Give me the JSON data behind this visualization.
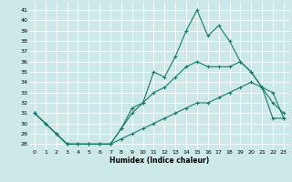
{
  "xlabel": "Humidex (Indice chaleur)",
  "bg_color": "#cce8e8",
  "grid_color": "#ffffff",
  "line_color": "#1a7a6a",
  "xlim": [
    -0.5,
    23.5
  ],
  "ylim": [
    27.5,
    41.8
  ],
  "yticks": [
    28,
    29,
    30,
    31,
    32,
    33,
    34,
    35,
    36,
    37,
    38,
    39,
    40,
    41
  ],
  "xticks": [
    0,
    1,
    2,
    3,
    4,
    5,
    6,
    7,
    8,
    9,
    10,
    11,
    12,
    13,
    14,
    15,
    16,
    17,
    18,
    19,
    20,
    21,
    22,
    23
  ],
  "line1": {
    "x": [
      0,
      1,
      2,
      3,
      4,
      5,
      6,
      7,
      8,
      9,
      10,
      11,
      12,
      13,
      14,
      15,
      16,
      17,
      18,
      19,
      20,
      21,
      22,
      23
    ],
    "y": [
      31.0,
      30.0,
      29.0,
      28.0,
      28.0,
      28.0,
      28.0,
      28.0,
      29.5,
      31.5,
      32.0,
      35.0,
      34.5,
      36.5,
      39.0,
      41.0,
      38.5,
      39.5,
      38.0,
      36.0,
      35.0,
      33.5,
      32.0,
      31.0
    ]
  },
  "line2": {
    "x": [
      0,
      1,
      2,
      3,
      4,
      5,
      6,
      7,
      8,
      9,
      10,
      11,
      12,
      13,
      14,
      15,
      16,
      17,
      18,
      19,
      20,
      21,
      22,
      23
    ],
    "y": [
      31.0,
      30.0,
      29.0,
      28.0,
      28.0,
      28.0,
      28.0,
      28.0,
      29.5,
      31.0,
      32.0,
      33.0,
      33.5,
      34.5,
      35.5,
      36.0,
      35.5,
      35.5,
      35.5,
      36.0,
      35.0,
      33.5,
      33.0,
      30.5
    ]
  },
  "line3": {
    "x": [
      0,
      1,
      2,
      3,
      4,
      5,
      6,
      7,
      8,
      9,
      10,
      11,
      12,
      13,
      14,
      15,
      16,
      17,
      18,
      19,
      20,
      21,
      22,
      23
    ],
    "y": [
      31.0,
      30.0,
      29.0,
      28.0,
      28.0,
      28.0,
      28.0,
      28.0,
      28.5,
      29.0,
      29.5,
      30.0,
      30.5,
      31.0,
      31.5,
      32.0,
      32.0,
      32.5,
      33.0,
      33.5,
      34.0,
      33.5,
      30.5,
      30.5
    ]
  }
}
